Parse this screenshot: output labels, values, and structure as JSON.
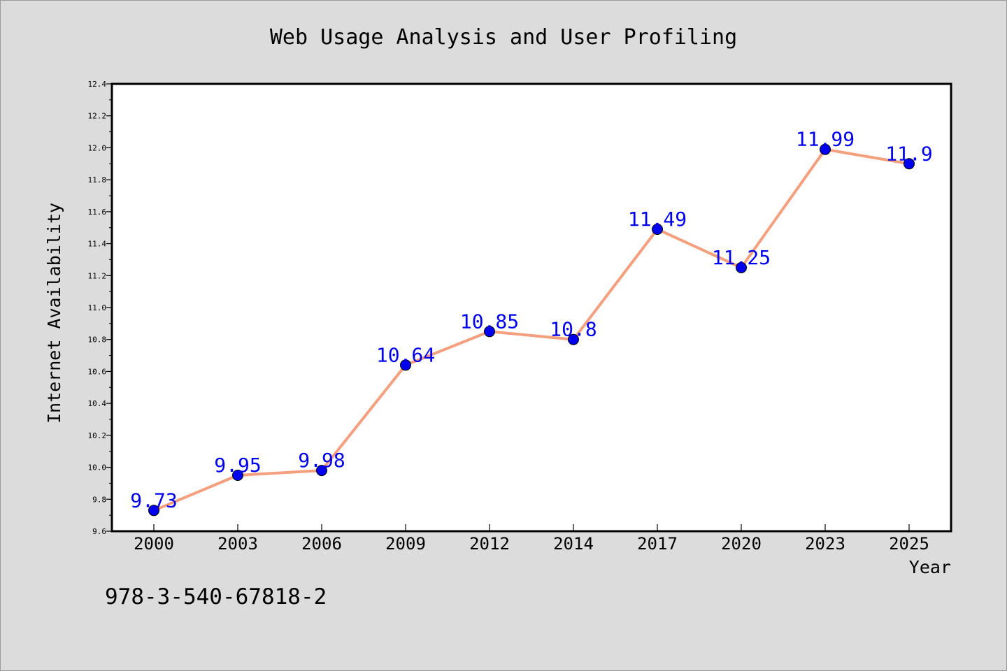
{
  "chart_data": {
    "type": "line",
    "title": "Web Usage Analysis and User Profiling",
    "xlabel": "Year",
    "ylabel": "Internet Availability",
    "categories": [
      "2000",
      "2003",
      "2006",
      "2009",
      "2012",
      "2014",
      "2017",
      "2020",
      "2023",
      "2025"
    ],
    "series": [
      {
        "values": [
          9.73,
          9.95,
          9.98,
          10.64,
          10.85,
          10.8,
          11.49,
          11.25,
          11.99,
          11.9
        ],
        "labels": [
          "9.73",
          "9.95",
          "9.98",
          "10.64",
          "10.85",
          "10.8",
          "11.49",
          "11.25",
          "11.99",
          "11.9"
        ]
      }
    ],
    "ylim": [
      9.6,
      12.4
    ],
    "yticks": [
      "9.6",
      "9.8",
      "10.0",
      "10.2",
      "10.4",
      "10.6",
      "10.8",
      "11.0",
      "11.2",
      "11.4",
      "11.6",
      "11.8",
      "12.0",
      "12.2",
      "12.4"
    ],
    "grid": false,
    "legend": "none",
    "colors": {
      "line": "#f4a07f",
      "marker": "#0000ee",
      "label": "#0000ee",
      "background": "#dcdcdc",
      "plot_background": "#ffffff"
    }
  },
  "footer_text": "978-3-540-67818-2"
}
